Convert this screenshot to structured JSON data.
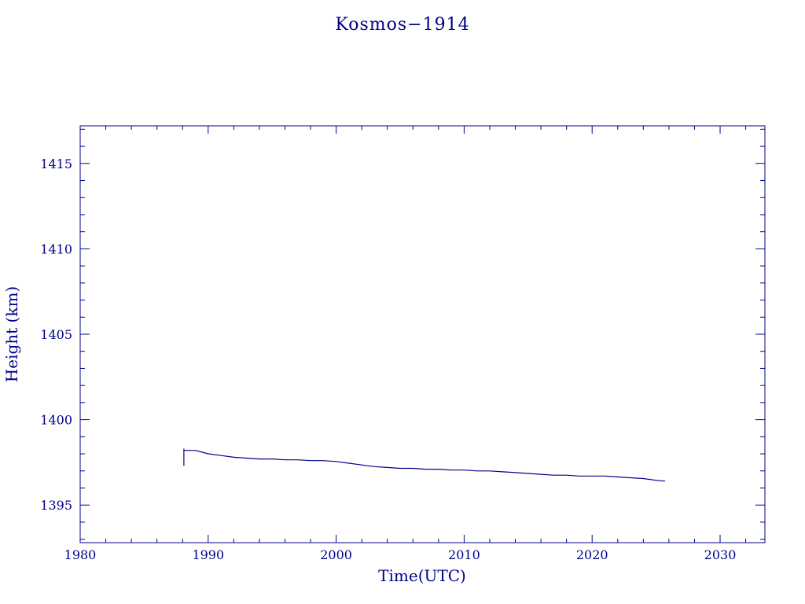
{
  "chart_data": {
    "type": "line",
    "title": "Kosmos−1914",
    "xlabel": "Time(UTC)",
    "ylabel": "Height (km)",
    "xlim": [
      1980,
      2033.5
    ],
    "ylim": [
      1392.8,
      1417.2
    ],
    "xticks": [
      1980,
      1990,
      2000,
      2010,
      2020,
      2030
    ],
    "xtick_labels": [
      "1980",
      "1990",
      "2000",
      "2010",
      "2020",
      "2030"
    ],
    "yticks": [
      1395,
      1400,
      1405,
      1410,
      1415
    ],
    "ytick_labels": [
      "1395",
      "1400",
      "1405",
      "1410",
      "1415"
    ],
    "grid": false,
    "series": [
      {
        "x": [
          1988.1,
          1988.1,
          1988.1,
          1988.5,
          1989.0,
          1990.0,
          1991.0,
          1992.0,
          1993.0,
          1994.0,
          1995.0,
          1996.0,
          1997.0,
          1998.0,
          1999.0,
          2000.0,
          2001.0,
          2002.0,
          2003.0,
          2004.0,
          2005.0,
          2006.0,
          2007.0,
          2008.0,
          2009.0,
          2010.0,
          2011.0,
          2012.0,
          2013.0,
          2014.0,
          2015.0,
          2016.0,
          2017.0,
          2018.0,
          2019.0,
          2020.0,
          2021.0,
          2022.0,
          2023.0,
          2024.0,
          2025.0,
          2025.7
        ],
        "y": [
          1397.3,
          1398.3,
          1398.2,
          1398.2,
          1398.2,
          1398.0,
          1397.9,
          1397.8,
          1397.75,
          1397.7,
          1397.7,
          1397.65,
          1397.65,
          1397.6,
          1397.6,
          1397.55,
          1397.45,
          1397.35,
          1397.25,
          1397.2,
          1397.15,
          1397.15,
          1397.1,
          1397.1,
          1397.05,
          1397.05,
          1397.0,
          1397.0,
          1396.95,
          1396.9,
          1396.85,
          1396.8,
          1396.75,
          1396.75,
          1396.7,
          1396.7,
          1396.7,
          1396.65,
          1396.6,
          1396.55,
          1396.45,
          1396.4
        ]
      }
    ]
  }
}
